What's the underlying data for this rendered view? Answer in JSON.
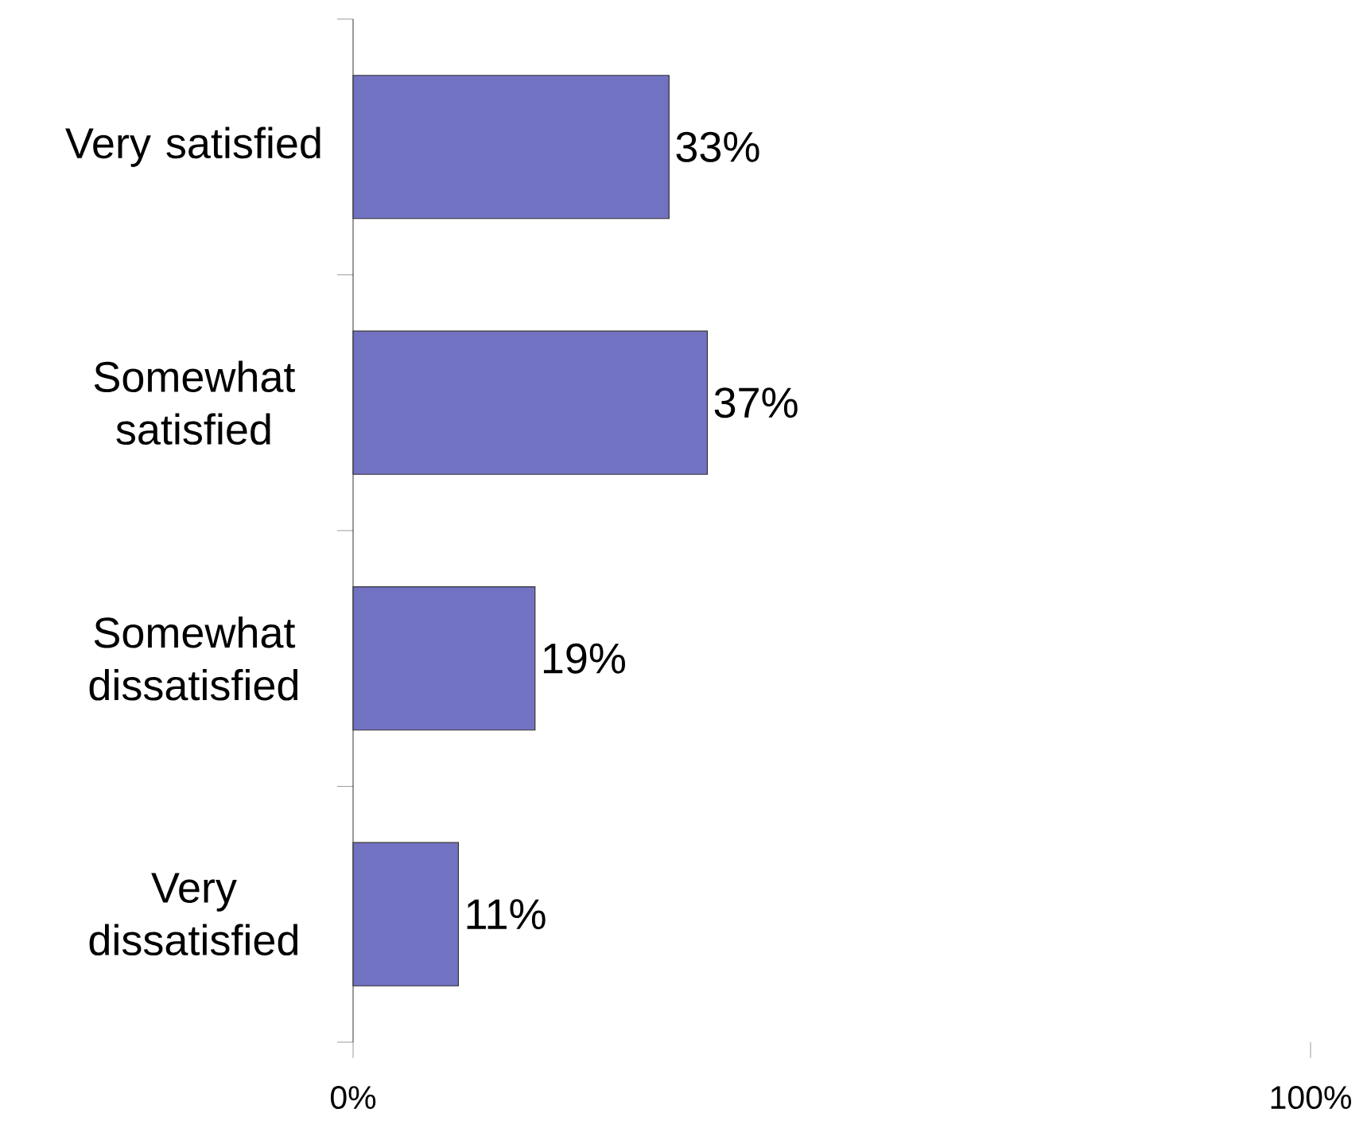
{
  "chart_data": {
    "type": "bar",
    "orientation": "horizontal",
    "categories": [
      "Very satisfied",
      "Somewhat satisfied",
      "Somewhat dissatisfied",
      "Very dissatisfied"
    ],
    "values": [
      33,
      37,
      19,
      11
    ],
    "value_labels": [
      "33%",
      "37%",
      "19%",
      "11%"
    ],
    "color": "#7272c2",
    "xlim": [
      0,
      100
    ],
    "xticks": [
      {
        "value": 0,
        "label": "0%"
      },
      {
        "value": 100,
        "label": "100%"
      }
    ],
    "grid": false
  }
}
